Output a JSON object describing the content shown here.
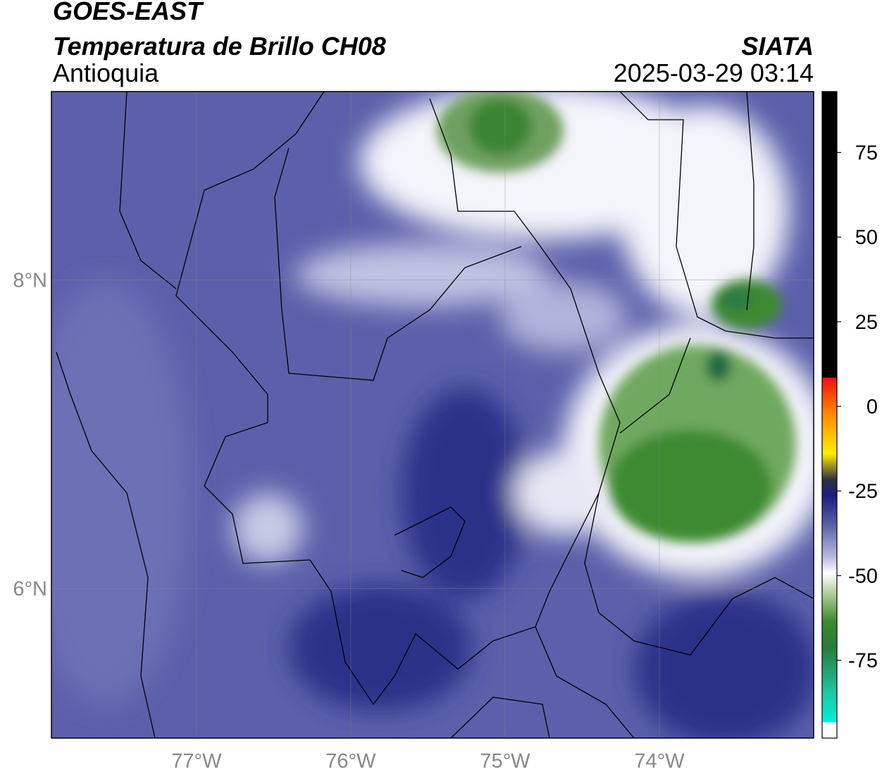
{
  "header": {
    "title": "GOES-EAST",
    "subtitle": "Temperatura de Brillo CH08",
    "region": "Antioquia",
    "source": "SIATA",
    "timestamp": "2025-03-29 03:14"
  },
  "map": {
    "xlim": [
      -77.94,
      -73.0
    ],
    "ylim": [
      5.03,
      9.22
    ],
    "xticks": [
      {
        "value": -77,
        "label": "77°W"
      },
      {
        "value": -76,
        "label": "76°W"
      },
      {
        "value": -75,
        "label": "75°W"
      },
      {
        "value": -74,
        "label": "74°W"
      }
    ],
    "yticks": [
      {
        "value": 8,
        "label": "8°N"
      },
      {
        "value": 6,
        "label": "6°N"
      }
    ],
    "grid": true
  },
  "colorbar": {
    "lim": [
      -98,
      93
    ],
    "ticks": [
      75,
      50,
      25,
      0,
      -25,
      -50,
      -75
    ]
  }
}
